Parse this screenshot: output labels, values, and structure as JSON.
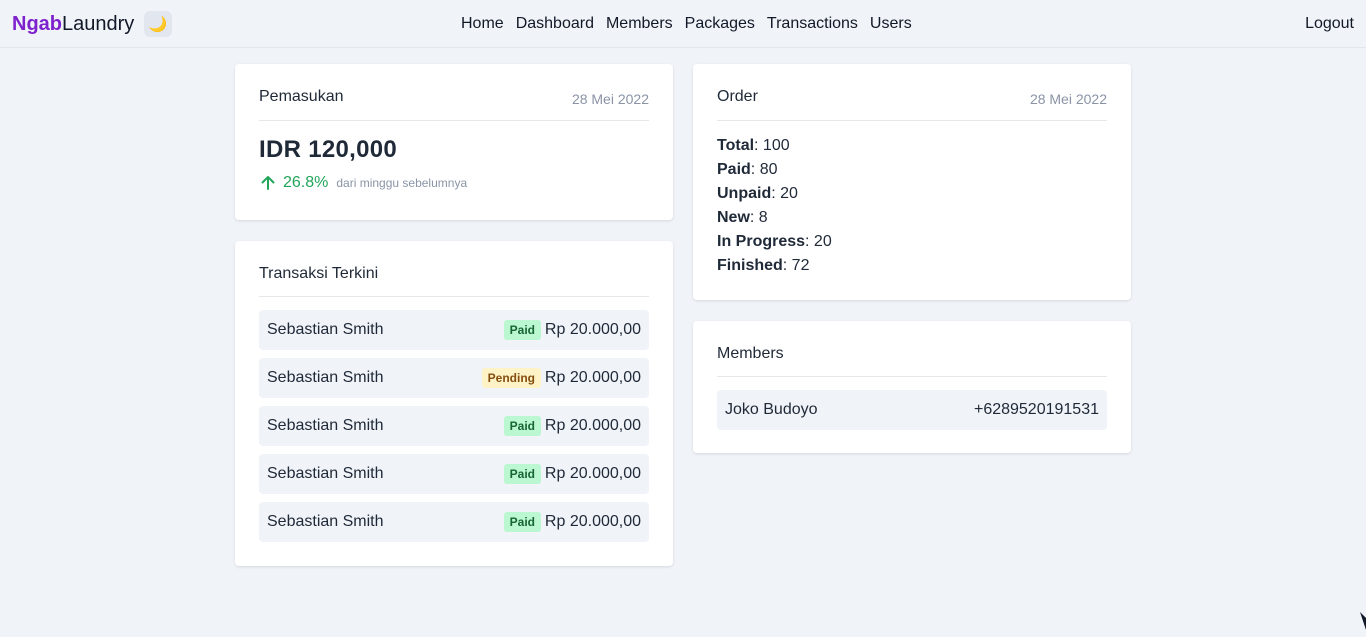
{
  "navbar": {
    "brand_accent": "Ngab",
    "brand_rest": "Laundry",
    "theme_icon": "🌙",
    "links": [
      "Home",
      "Dashboard",
      "Members",
      "Packages",
      "Transactions",
      "Users"
    ],
    "logout": "Logout"
  },
  "income": {
    "title": "Pemasukan",
    "date": "28 Mei 2022",
    "amount": "IDR 120,000",
    "change_pct": "26.8%",
    "change_note": "dari minggu sebelumnya",
    "change_icon": "arrow-up-icon",
    "change_color": "#22a55a"
  },
  "transactions": {
    "title": "Transaksi Terkini",
    "items": [
      {
        "name": "Sebastian Smith",
        "status": "Paid",
        "amount": "Rp 20.000,00"
      },
      {
        "name": "Sebastian Smith",
        "status": "Pending",
        "amount": "Rp 20.000,00"
      },
      {
        "name": "Sebastian Smith",
        "status": "Paid",
        "amount": "Rp 20.000,00"
      },
      {
        "name": "Sebastian Smith",
        "status": "Paid",
        "amount": "Rp 20.000,00"
      },
      {
        "name": "Sebastian Smith",
        "status": "Paid",
        "amount": "Rp 20.000,00"
      }
    ]
  },
  "order": {
    "title": "Order",
    "date": "28 Mei 2022",
    "stats": [
      {
        "label": "Total",
        "value": "100"
      },
      {
        "label": "Paid",
        "value": "80"
      },
      {
        "label": "Unpaid",
        "value": "20"
      },
      {
        "label": "New",
        "value": "8"
      },
      {
        "label": "In Progress",
        "value": "20"
      },
      {
        "label": "Finished",
        "value": "72"
      }
    ]
  },
  "members": {
    "title": "Members",
    "items": [
      {
        "name": "Joko Budoyo",
        "phone": "+6289520191531"
      }
    ]
  },
  "colors": {
    "brand_accent": "#7e22ce",
    "paid_badge_bg": "#bbf7d0",
    "pending_badge_bg": "#fef3c7",
    "background": "#f0f3f8"
  }
}
